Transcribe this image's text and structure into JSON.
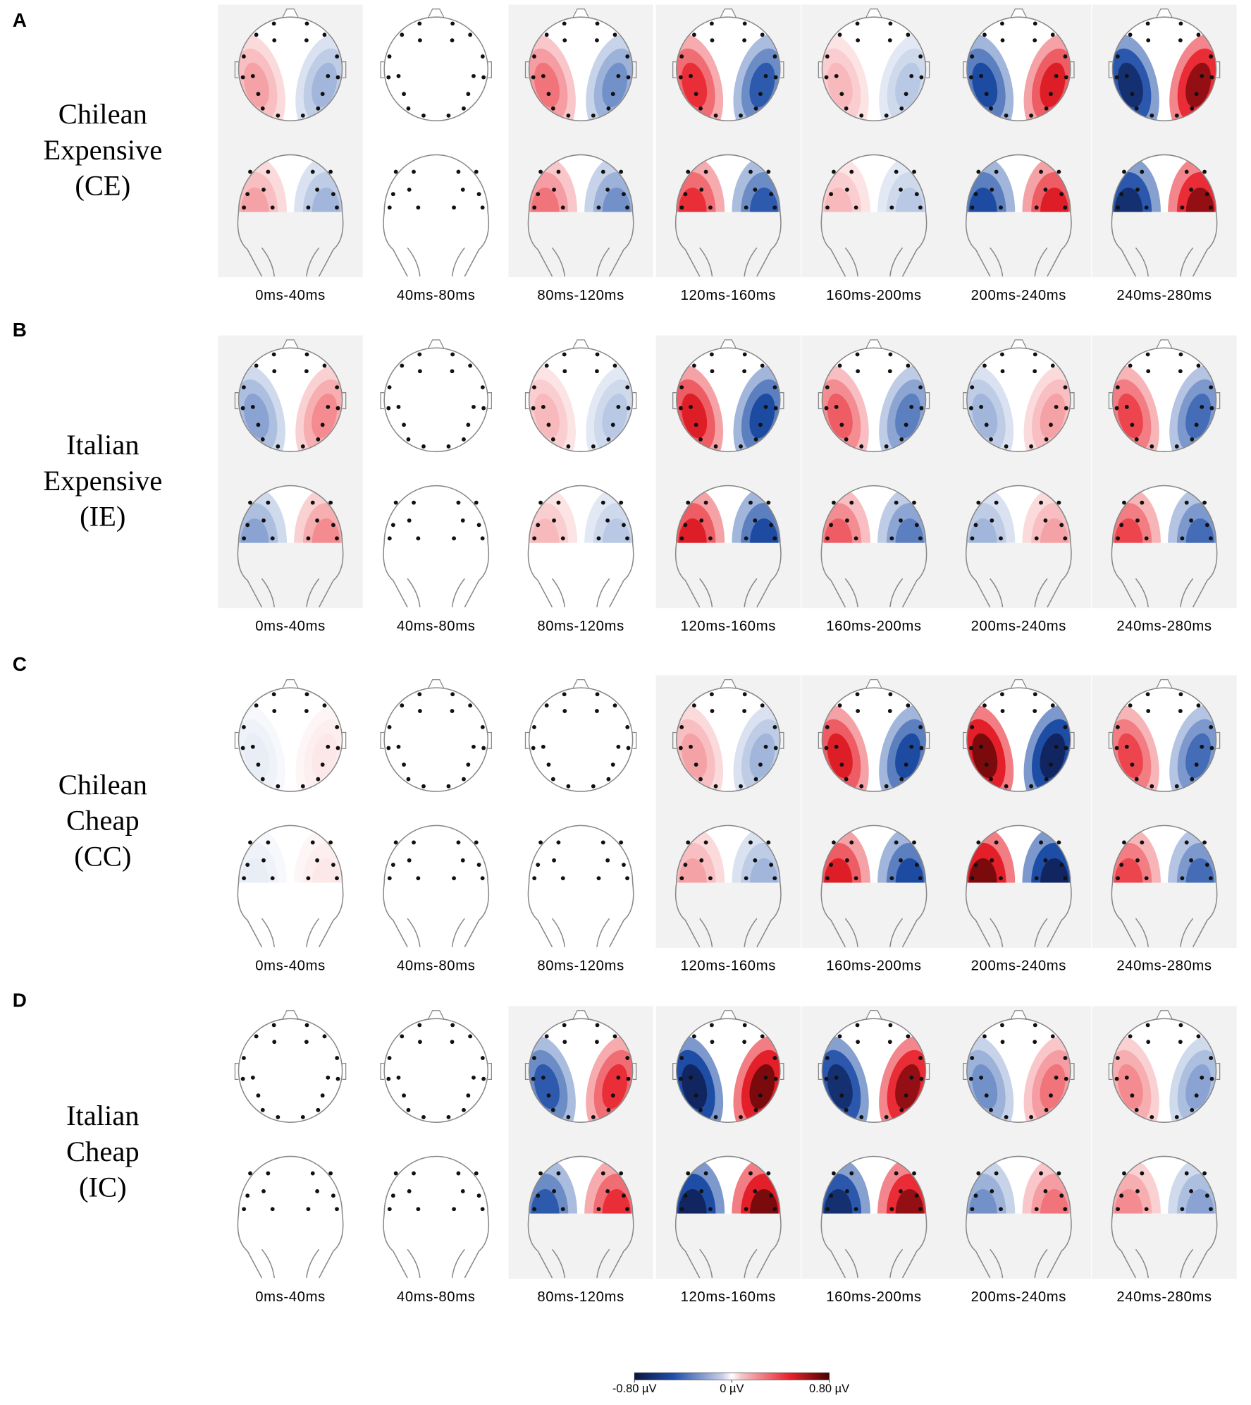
{
  "panels": [
    {
      "letter": "A",
      "label": [
        "Chilean",
        "Expensive",
        "(CE)"
      ],
      "maps": [
        {
          "window": "0ms-40ms",
          "amplitude": 0.2,
          "shaded": true
        },
        {
          "window": "40ms-80ms",
          "amplitude": 0,
          "shaded": false
        },
        {
          "window": "80ms-120ms",
          "amplitude": 0.3,
          "shaded": true
        },
        {
          "window": "120ms-160ms",
          "amplitude": 0.45,
          "shaded": true
        },
        {
          "window": "160ms-200ms",
          "amplitude": 0.15,
          "shaded": true
        },
        {
          "window": "200ms-240ms",
          "amplitude": -0.5,
          "shaded": true
        },
        {
          "window": "240ms-280ms",
          "amplitude": -0.65,
          "shaded": true
        }
      ]
    },
    {
      "letter": "B",
      "label": [
        "Italian",
        "Expensive",
        "(IE)"
      ],
      "maps": [
        {
          "window": "0ms-40ms",
          "amplitude": -0.25,
          "shaded": true
        },
        {
          "window": "40ms-80ms",
          "amplitude": 0,
          "shaded": false
        },
        {
          "window": "80ms-120ms",
          "amplitude": 0.15,
          "shaded": false
        },
        {
          "window": "120ms-160ms",
          "amplitude": 0.5,
          "shaded": true
        },
        {
          "window": "160ms-200ms",
          "amplitude": 0.35,
          "shaded": true
        },
        {
          "window": "200ms-240ms",
          "amplitude": -0.2,
          "shaded": true
        },
        {
          "window": "240ms-280ms",
          "amplitude": 0.4,
          "shaded": true
        }
      ]
    },
    {
      "letter": "C",
      "label": [
        "Chilean",
        "Cheap",
        "(CC)"
      ],
      "maps": [
        {
          "window": "0ms-40ms",
          "amplitude": -0.05,
          "shaded": false
        },
        {
          "window": "40ms-80ms",
          "amplitude": 0,
          "shaded": false
        },
        {
          "window": "80ms-120ms",
          "amplitude": 0,
          "shaded": false
        },
        {
          "window": "120ms-160ms",
          "amplitude": 0.2,
          "shaded": true
        },
        {
          "window": "160ms-200ms",
          "amplitude": 0.5,
          "shaded": true
        },
        {
          "window": "200ms-240ms",
          "amplitude": 0.7,
          "shaded": true
        },
        {
          "window": "240ms-280ms",
          "amplitude": 0.4,
          "shaded": true
        }
      ]
    },
    {
      "letter": "D",
      "label": [
        "Italian",
        "Cheap",
        "(IC)"
      ],
      "maps": [
        {
          "window": "0ms-40ms",
          "amplitude": 0,
          "shaded": false
        },
        {
          "window": "40ms-80ms",
          "amplitude": 0,
          "shaded": false
        },
        {
          "window": "80ms-120ms",
          "amplitude": -0.45,
          "shaded": true
        },
        {
          "window": "120ms-160ms",
          "amplitude": -0.7,
          "shaded": true
        },
        {
          "window": "160ms-200ms",
          "amplitude": -0.65,
          "shaded": true
        },
        {
          "window": "200ms-240ms",
          "amplitude": -0.3,
          "shaded": true
        },
        {
          "window": "240ms-280ms",
          "amplitude": 0.25,
          "shaded": true
        }
      ]
    }
  ],
  "colorbar": {
    "lim": [
      -0.8,
      0.8
    ],
    "ticks": [
      {
        "value": -0.8,
        "label": "-0.80 µV"
      },
      {
        "value": 0,
        "label": "0 µV"
      },
      {
        "value": 0.8,
        "label": "0.80 µV"
      }
    ]
  }
}
